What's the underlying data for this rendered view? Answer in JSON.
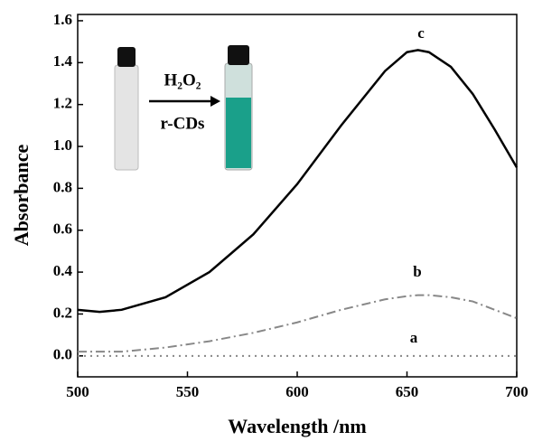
{
  "chart_data": {
    "type": "line",
    "x_label": "Wavelength /nm",
    "y_label": "Absorbance",
    "x": [
      500,
      510,
      520,
      540,
      560,
      580,
      600,
      620,
      640,
      650,
      655,
      660,
      670,
      680,
      690,
      700
    ],
    "series": [
      {
        "name": "a",
        "color": "#888888",
        "dash": "dot",
        "values": [
          0,
          0,
          0,
          0,
          0,
          0,
          0,
          0,
          0,
          0,
          0,
          0,
          0,
          0,
          0,
          0
        ]
      },
      {
        "name": "b",
        "color": "#888888",
        "dash": "dashdot",
        "values": [
          0.02,
          0.02,
          0.02,
          0.04,
          0.07,
          0.11,
          0.16,
          0.22,
          0.27,
          0.285,
          0.29,
          0.29,
          0.28,
          0.26,
          0.22,
          0.18
        ]
      },
      {
        "name": "c",
        "color": "#000000",
        "dash": "solid",
        "values": [
          0.22,
          0.21,
          0.22,
          0.28,
          0.4,
          0.58,
          0.82,
          1.1,
          1.36,
          1.45,
          1.46,
          1.45,
          1.38,
          1.25,
          1.08,
          0.9
        ]
      }
    ],
    "xlim": [
      500,
      700
    ],
    "ylim": [
      -0.1,
      1.63
    ],
    "xticks": [
      500,
      550,
      600,
      650,
      700
    ],
    "yticks": [
      {
        "value": 0,
        "label": "0.0"
      },
      {
        "value": 0.2,
        "label": "0.2"
      },
      {
        "value": 0.4,
        "label": "0.4"
      },
      {
        "value": 0.6,
        "label": "0.6"
      },
      {
        "value": 0.8,
        "label": "0.8"
      },
      {
        "value": 1.0,
        "label": "1.0"
      },
      {
        "value": 1.2,
        "label": "1.2"
      },
      {
        "value": 1.4,
        "label": "1.4"
      },
      {
        "value": 1.6,
        "label": "1.6"
      }
    ],
    "inset": {
      "reagent": "H₂O₂",
      "catalyst": "r-CDs"
    }
  }
}
